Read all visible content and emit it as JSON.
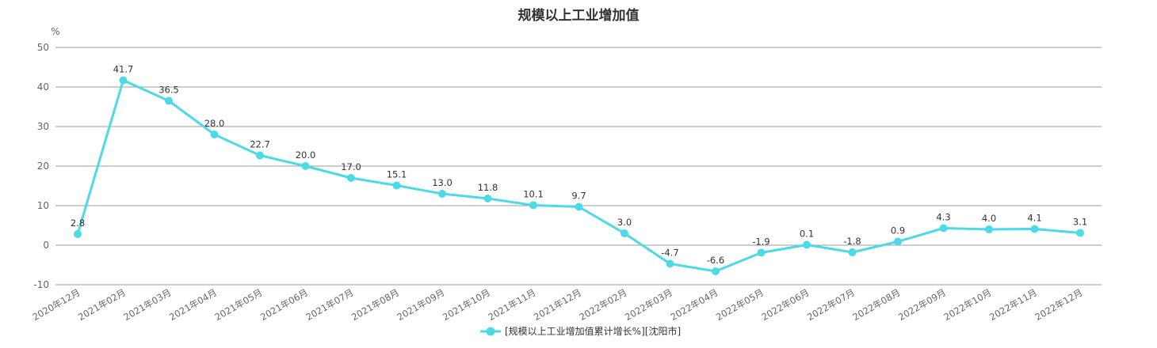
{
  "chart_data": {
    "type": "line",
    "title": "规模以上工业增加值",
    "y_unit": "%",
    "ylim": [
      -10,
      50
    ],
    "y_ticks": [
      -10,
      0,
      10,
      20,
      30,
      40,
      50
    ],
    "grid": true,
    "legend_position": "bottom-center",
    "categories": [
      "2020年12月",
      "2021年02月",
      "2021年03月",
      "2021年04月",
      "2021年05月",
      "2021年06月",
      "2021年07月",
      "2021年08月",
      "2021年09月",
      "2021年10月",
      "2021年11月",
      "2021年12月",
      "2022年02月",
      "2022年03月",
      "2022年04月",
      "2022年05月",
      "2022年06月",
      "2022年07月",
      "2022年08月",
      "2022年09月",
      "2022年10月",
      "2022年11月",
      "2022年12月"
    ],
    "series": [
      {
        "name": "[规模以上工业增加值累计增长%][沈阳市]",
        "color": "#4dd9e6",
        "values": [
          2.8,
          41.7,
          36.5,
          28.0,
          22.7,
          20.0,
          17.0,
          15.1,
          13.0,
          11.8,
          10.1,
          9.7,
          3.0,
          -4.7,
          -6.6,
          -1.9,
          0.1,
          -1.8,
          0.9,
          4.3,
          4.0,
          4.1,
          3.1
        ],
        "labels": [
          "2.8",
          "41.7",
          "36.5",
          "28.0",
          "22.7",
          "20.0",
          "17.0",
          "15.1",
          "13.0",
          "11.8",
          "10.1",
          "9.7",
          "3.0",
          "-4.7",
          "-6.6",
          "-1.9",
          "0.1",
          "-1.8",
          "0.9",
          "4.3",
          "4.0",
          "4.1",
          "3.1"
        ]
      }
    ]
  }
}
